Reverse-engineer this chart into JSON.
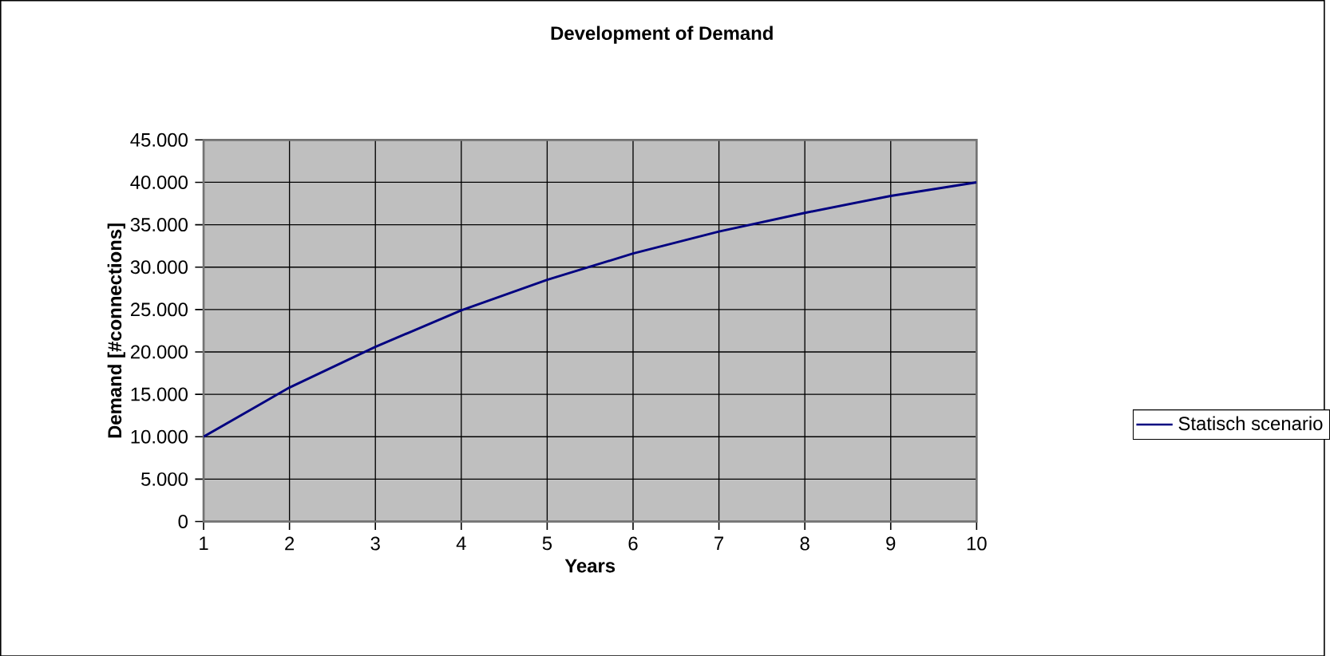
{
  "chart_data": {
    "type": "line",
    "title": "Development of Demand",
    "xlabel": "Years",
    "ylabel": "Demand [#connections]",
    "categories": [
      "1",
      "2",
      "3",
      "4",
      "5",
      "6",
      "7",
      "8",
      "9",
      "10"
    ],
    "series": [
      {
        "name": "Statisch scenario",
        "color": "#000080",
        "values": [
          10000,
          15800,
          20600,
          24900,
          28500,
          31600,
          34200,
          36400,
          38400,
          40000
        ]
      }
    ],
    "ylim": [
      0,
      45000
    ],
    "yticks": [
      {
        "value": 0,
        "label": "0"
      },
      {
        "value": 5000,
        "label": "5.000"
      },
      {
        "value": 10000,
        "label": "10.000"
      },
      {
        "value": 15000,
        "label": "15.000"
      },
      {
        "value": 20000,
        "label": "20.000"
      },
      {
        "value": 25000,
        "label": "25.000"
      },
      {
        "value": 30000,
        "label": "30.000"
      },
      {
        "value": 35000,
        "label": "35.000"
      },
      {
        "value": 40000,
        "label": "40.000"
      },
      {
        "value": 45000,
        "label": "45.000"
      }
    ],
    "grid": true,
    "legend": "right",
    "marker": "none",
    "line_style": "solid"
  }
}
